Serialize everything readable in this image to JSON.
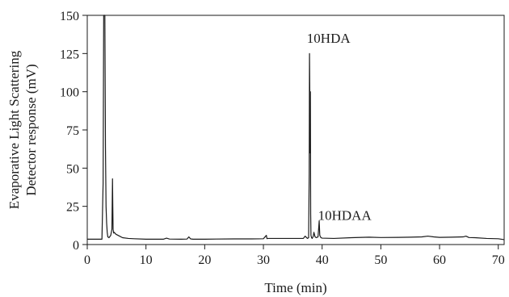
{
  "chart_data": {
    "type": "line",
    "title": "",
    "xlabel": "Time (min)",
    "ylabel_lines": [
      "Evaporative Light Scattering",
      "Detector response (mV)"
    ],
    "xlim": [
      0,
      71
    ],
    "ylim": [
      0,
      150
    ],
    "xticks": [
      0,
      10,
      20,
      30,
      40,
      50,
      60,
      70
    ],
    "yticks": [
      0,
      25,
      50,
      75,
      100,
      125,
      150
    ],
    "grid": false,
    "legend": "none",
    "series": [
      {
        "color": "#1a1a1a",
        "x": [
          0.0,
          2.5,
          2.7,
          2.8,
          2.9,
          3.0,
          3.1,
          3.2,
          3.3,
          3.4,
          3.5,
          3.7,
          4.0,
          4.2,
          4.3,
          4.35,
          4.4,
          4.5,
          4.6,
          4.8,
          5.0,
          5.5,
          6.0,
          7.0,
          8.0,
          10.0,
          12.0,
          13.0,
          13.5,
          14.0,
          16.0,
          17.0,
          17.3,
          17.6,
          18.0,
          20.0,
          22.0,
          25.0,
          28.0,
          30.0,
          30.5,
          30.6,
          30.8,
          31.0,
          33.0,
          35.0,
          36.8,
          37.1,
          37.5,
          37.7,
          37.8,
          37.85,
          37.9,
          37.95,
          38.0,
          38.05,
          38.1,
          38.2,
          38.3,
          38.5,
          38.6,
          38.8,
          39.0,
          39.3,
          39.4,
          39.5,
          39.6,
          39.8,
          40.0,
          42.0,
          45.0,
          48.0,
          50.0,
          53.0,
          55.0,
          57.0,
          58.0,
          59.0,
          60.0,
          62.0,
          64.0,
          64.5,
          65.0,
          66.0,
          68.0,
          70.0,
          71.0
        ],
        "y": [
          3.5,
          3.5,
          40,
          150,
          150,
          150,
          64,
          25,
          14,
          8,
          5,
          4.5,
          6,
          10,
          43,
          25,
          10,
          7.5,
          8,
          7,
          6.5,
          5.5,
          4.5,
          4.0,
          3.8,
          3.5,
          3.5,
          3.5,
          4.2,
          3.6,
          3.5,
          3.6,
          5.0,
          3.7,
          3.5,
          3.5,
          3.6,
          3.7,
          3.7,
          3.8,
          6.0,
          3.9,
          4.0,
          4.0,
          4.0,
          4.0,
          4.0,
          5.5,
          4.0,
          4.5,
          47,
          125,
          100,
          60,
          100,
          20,
          6,
          4.5,
          4.0,
          5.5,
          8.0,
          5.0,
          4.5,
          5.0,
          10.0,
          15.5,
          6.0,
          4.5,
          4.2,
          4.0,
          4.5,
          4.8,
          4.6,
          4.7,
          4.8,
          5.0,
          5.5,
          5.0,
          4.7,
          4.8,
          5.0,
          5.5,
          4.6,
          4.5,
          4.0,
          3.8,
          3.2
        ]
      }
    ],
    "annotations": [
      {
        "text": "10HDA",
        "x": 37.4,
        "y": 132
      },
      {
        "text": "10HDAA",
        "x": 39.3,
        "y": 16
      }
    ]
  }
}
